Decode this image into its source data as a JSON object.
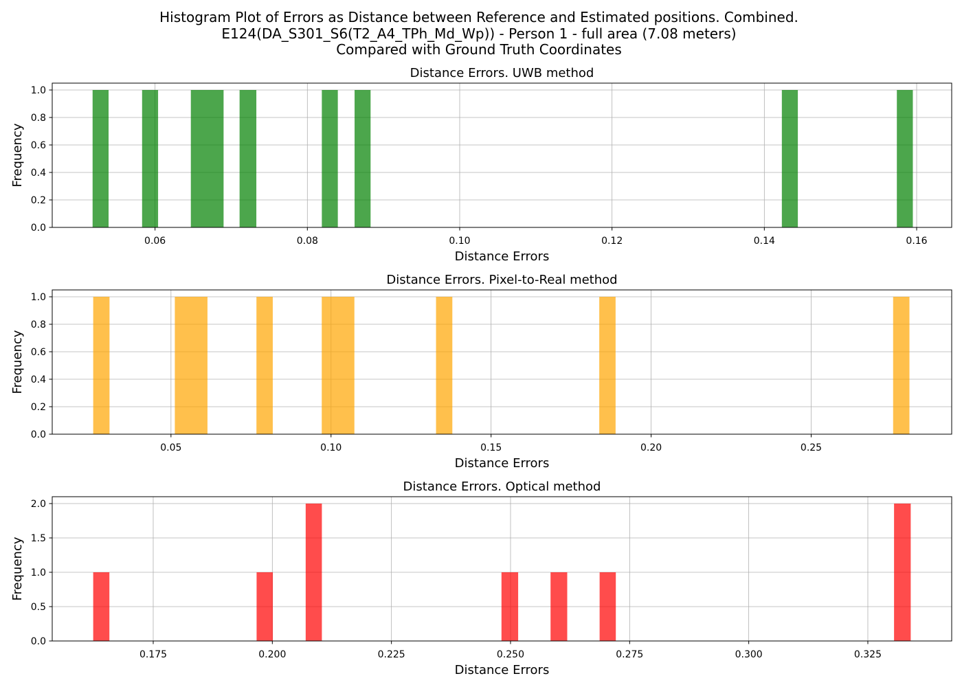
{
  "figure": {
    "title_lines": [
      "Histogram Plot of Errors as Distance between Reference and Estimated positions. Combined.",
      "E124(DA_S301_S6(T2_A4_TPh_Md_Wp)) - Person 1 - full area (7.08 meters)",
      "Compared with Ground Truth Coordinates"
    ]
  },
  "chart_data": [
    {
      "type": "bar",
      "title": "Distance Errors. UWB method",
      "xlabel": "Distance Errors",
      "ylabel": "Frequency",
      "xlim": [
        0.0465,
        0.1646
      ],
      "ylim": [
        0,
        1.05
      ],
      "xticks": [
        0.06,
        0.08,
        0.1,
        0.12,
        0.14,
        0.16
      ],
      "xtick_labels": [
        "0.06",
        "0.08",
        "0.10",
        "0.12",
        "0.14",
        "0.16"
      ],
      "yticks": [
        0.0,
        0.2,
        0.4,
        0.6,
        0.8,
        1.0
      ],
      "ytick_labels": [
        "0.0",
        "0.2",
        "0.4",
        "0.6",
        "0.8",
        "1.0"
      ],
      "grid": true,
      "color": "#008000",
      "opacity": 0.7,
      "bins": [
        {
          "x0": 0.0518,
          "x1": 0.0539,
          "count": 1
        },
        {
          "x0": 0.0583,
          "x1": 0.0604,
          "count": 1
        },
        {
          "x0": 0.0647,
          "x1": 0.069,
          "count": 1
        },
        {
          "x0": 0.0711,
          "x1": 0.0733,
          "count": 1
        },
        {
          "x0": 0.0819,
          "x1": 0.084,
          "count": 1
        },
        {
          "x0": 0.0862,
          "x1": 0.0883,
          "count": 1
        },
        {
          "x0": 0.1423,
          "x1": 0.1444,
          "count": 1
        },
        {
          "x0": 0.1574,
          "x1": 0.1595,
          "count": 1
        }
      ]
    },
    {
      "type": "bar",
      "title": "Distance Errors. Pixel-to-Real method",
      "xlabel": "Distance Errors",
      "ylabel": "Frequency",
      "xlim": [
        0.0129,
        0.2939
      ],
      "ylim": [
        0,
        1.05
      ],
      "xticks": [
        0.05,
        0.1,
        0.15,
        0.2,
        0.25
      ],
      "xtick_labels": [
        "0.05",
        "0.10",
        "0.15",
        "0.20",
        "0.25"
      ],
      "yticks": [
        0.0,
        0.2,
        0.4,
        0.6,
        0.8,
        1.0
      ],
      "ytick_labels": [
        "0.0",
        "0.2",
        "0.4",
        "0.6",
        "0.8",
        "1.0"
      ],
      "grid": true,
      "color": "#FFA500",
      "opacity": 0.7,
      "bins": [
        {
          "x0": 0.0257,
          "x1": 0.0308,
          "count": 1
        },
        {
          "x0": 0.0512,
          "x1": 0.0614,
          "count": 1
        },
        {
          "x0": 0.0767,
          "x1": 0.0818,
          "count": 1
        },
        {
          "x0": 0.0971,
          "x1": 0.1073,
          "count": 1
        },
        {
          "x0": 0.1328,
          "x1": 0.1379,
          "count": 1
        },
        {
          "x0": 0.1838,
          "x1": 0.1889,
          "count": 1
        },
        {
          "x0": 0.2756,
          "x1": 0.2807,
          "count": 1
        }
      ]
    },
    {
      "type": "bar",
      "title": "Distance Errors. Optical method",
      "xlabel": "Distance Errors",
      "ylabel": "Frequency",
      "xlim": [
        0.1538,
        0.3426
      ],
      "ylim": [
        0,
        2.1
      ],
      "xticks": [
        0.175,
        0.2,
        0.225,
        0.25,
        0.275,
        0.3,
        0.325
      ],
      "xtick_labels": [
        "0.175",
        "0.200",
        "0.225",
        "0.250",
        "0.275",
        "0.300",
        "0.325"
      ],
      "yticks": [
        0.0,
        0.5,
        1.0,
        1.5,
        2.0
      ],
      "ytick_labels": [
        "0.0",
        "0.5",
        "1.0",
        "1.5",
        "2.0"
      ],
      "grid": true,
      "color": "#FF0000",
      "opacity": 0.7,
      "bins": [
        {
          "x0": 0.1624,
          "x1": 0.1658,
          "count": 1
        },
        {
          "x0": 0.1967,
          "x1": 0.2001,
          "count": 1
        },
        {
          "x0": 0.207,
          "x1": 0.2104,
          "count": 2
        },
        {
          "x0": 0.2481,
          "x1": 0.2516,
          "count": 1
        },
        {
          "x0": 0.2584,
          "x1": 0.2619,
          "count": 1
        },
        {
          "x0": 0.2687,
          "x1": 0.2721,
          "count": 1
        },
        {
          "x0": 0.3305,
          "x1": 0.334,
          "count": 2
        }
      ]
    }
  ]
}
